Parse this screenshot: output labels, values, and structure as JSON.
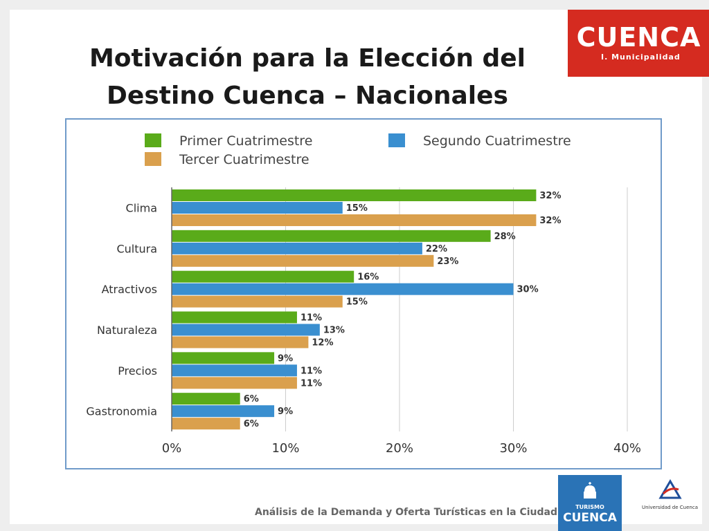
{
  "slide": {
    "title_line1": "Motivación para la Elección del",
    "title_line2": "Destino Cuenca – Nacionales",
    "logo_main": "CUENCA",
    "logo_sub": "I. Municipalidad",
    "footer": "Análisis de la Demanda y Oferta Turísticas en la Ciudad de Cuenca",
    "turismo_line1": "TURISMO",
    "turismo_line2": "CUENCA",
    "universidad": "Universidad de Cuenca"
  },
  "colors": {
    "logo_red": "#d52b20",
    "series1": "#5aab1a",
    "series2": "#3a8fd0",
    "series3": "#daa04d",
    "border": "#6f9ac9"
  },
  "icons": {
    "turismo": "church-dome-icon",
    "universidad": "university-crest-icon"
  },
  "chart_data": {
    "type": "bar",
    "orientation": "horizontal",
    "categories": [
      "Clima",
      "Cultura",
      "Atractivos",
      "Naturaleza",
      "Precios",
      "Gastronomia"
    ],
    "series": [
      {
        "name": "Primer Cuatrimestre",
        "values": [
          32,
          28,
          16,
          11,
          9,
          6
        ],
        "labels": [
          "32%",
          "28%",
          "16%",
          "11%",
          "9%",
          "6%"
        ]
      },
      {
        "name": "Segundo Cuatrimestre",
        "values": [
          15,
          22,
          30,
          13,
          11,
          9
        ],
        "labels": [
          "15%",
          "22%",
          "30%",
          "13%",
          "11%",
          "9%"
        ]
      },
      {
        "name": "Tercer Cuatrimestre",
        "values": [
          32,
          23,
          15,
          12,
          11,
          6
        ],
        "labels": [
          "32%",
          "23%",
          "15%",
          "12%",
          "11%",
          "6%"
        ]
      }
    ],
    "xlim": [
      0,
      40
    ],
    "xticks": [
      "0%",
      "10%",
      "20%",
      "30%",
      "40%"
    ],
    "grid": true,
    "legend": "top"
  }
}
